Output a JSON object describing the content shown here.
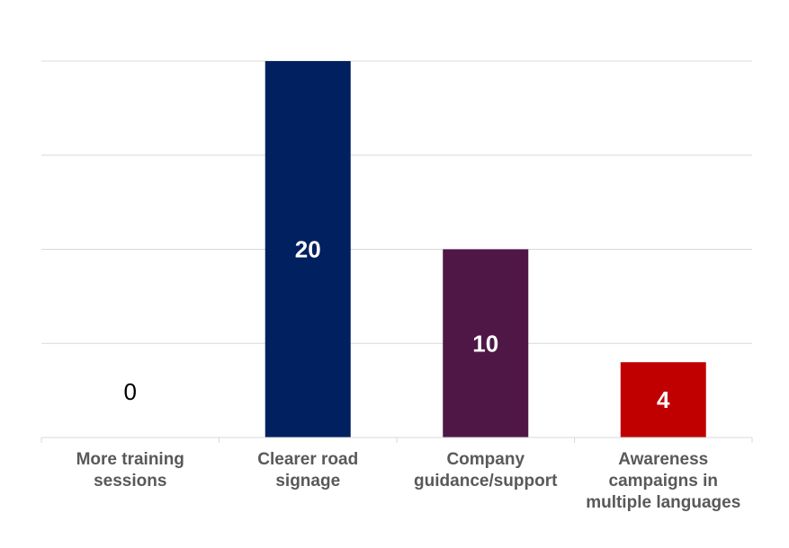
{
  "chart_data": {
    "type": "bar",
    "categories": [
      "More training\nsessions",
      "Clearer road\nsignage",
      "Company\nguidance/support",
      "Awareness\ncampaigns in\nmultiple languages"
    ],
    "values": [
      0,
      20,
      10,
      4
    ],
    "data_labels": [
      "0",
      "20",
      "10",
      "4"
    ],
    "colors": [
      "#1F3864",
      "#002060",
      "#4F1746",
      "#C00000"
    ],
    "ylim": [
      0,
      20
    ],
    "grid": true,
    "gridline_values": [
      0,
      5,
      10,
      15,
      20
    ],
    "show_y_tick_labels": false,
    "legend": "none",
    "title": "",
    "xlabel": "",
    "ylabel": ""
  }
}
